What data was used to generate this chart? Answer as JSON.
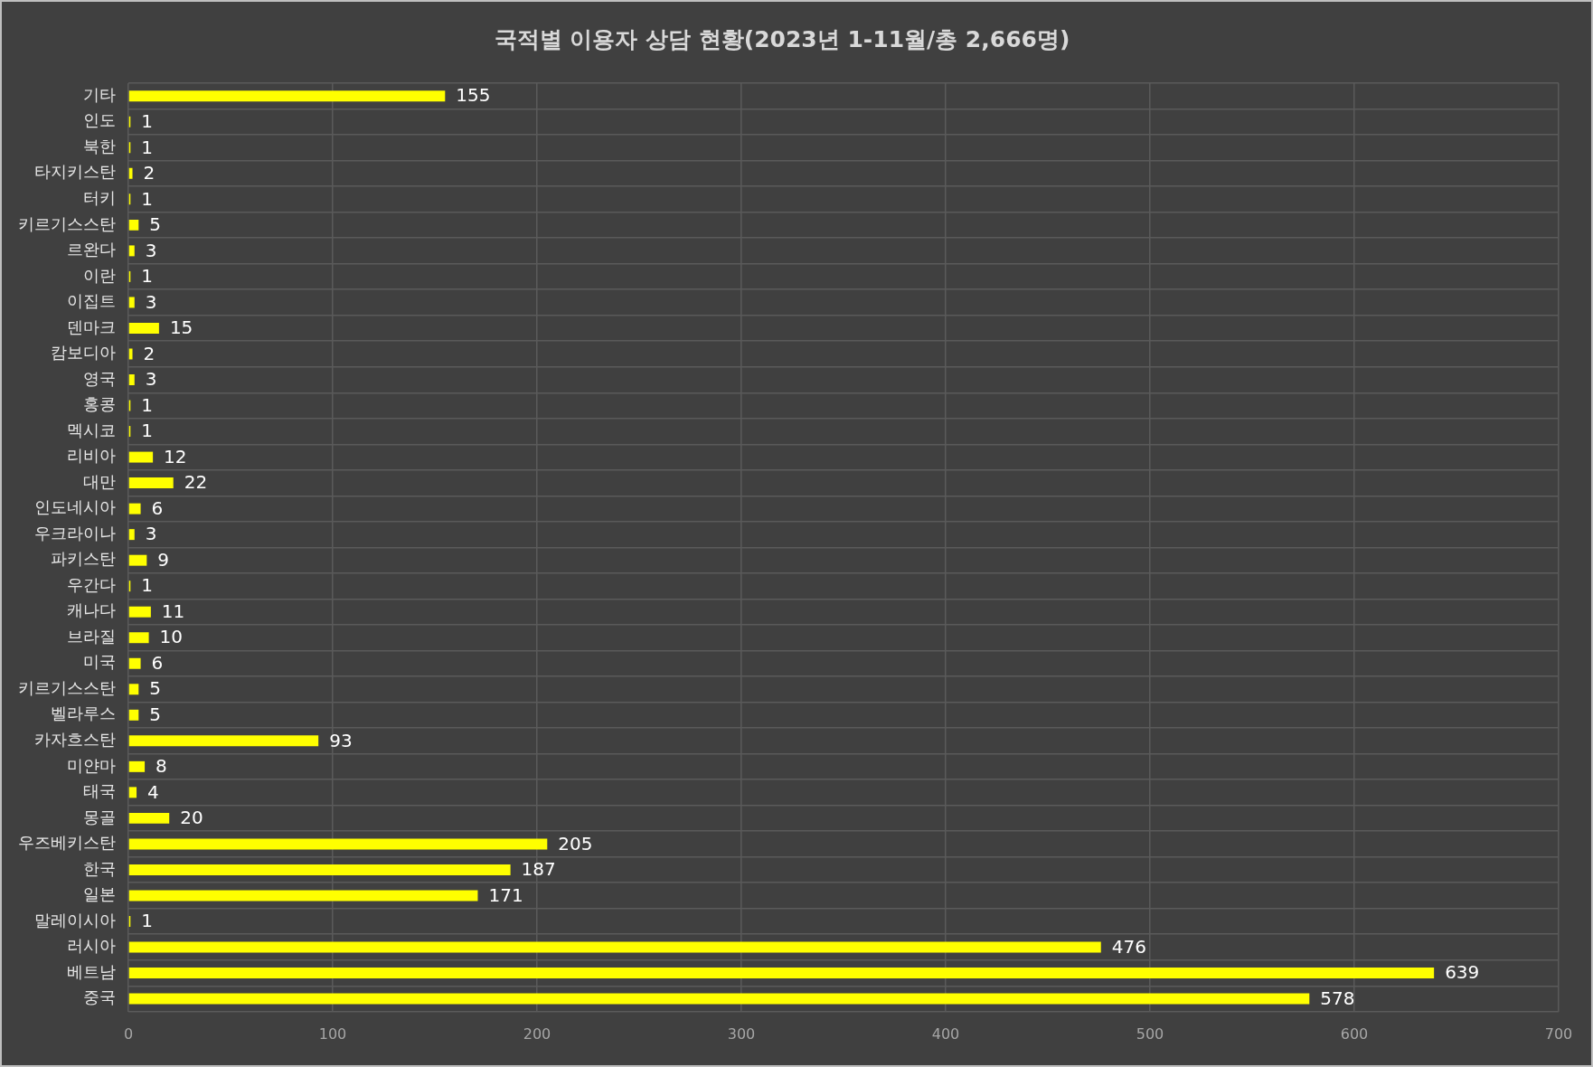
{
  "chart_data": {
    "type": "bar",
    "orientation": "horizontal",
    "title": "국적별 이용자 상담 현황(2023년 1-11월/총 2,666명)",
    "categories": [
      "기타",
      "인도",
      "북한",
      "타지키스탄",
      "터키",
      "키르기스스탄",
      "르완다",
      "이란",
      "이집트",
      "덴마크",
      "캄보디아",
      "영국",
      "홍콩",
      "멕시코",
      "리비아",
      "대만",
      "인도네시아",
      "우크라이나",
      "파키스탄",
      "우간다",
      "캐나다",
      "브라질",
      "미국",
      "키르기스스탄",
      "벨라루스",
      "카자흐스탄",
      "미얀마",
      "태국",
      "몽골",
      "우즈베키스탄",
      "한국",
      "일본",
      "말레이시아",
      "러시아",
      "베트남",
      "중국"
    ],
    "values": [
      155,
      1,
      1,
      2,
      1,
      5,
      3,
      1,
      3,
      15,
      2,
      3,
      1,
      1,
      12,
      22,
      6,
      3,
      9,
      1,
      11,
      10,
      6,
      5,
      5,
      93,
      8,
      4,
      20,
      205,
      187,
      171,
      1,
      476,
      639,
      578
    ],
    "color": "#ffff00",
    "xlim": [
      0,
      700
    ],
    "xticks": [
      0,
      100,
      200,
      300,
      400,
      500,
      600,
      700
    ],
    "grid": true,
    "legend": false,
    "data_labels": true
  }
}
